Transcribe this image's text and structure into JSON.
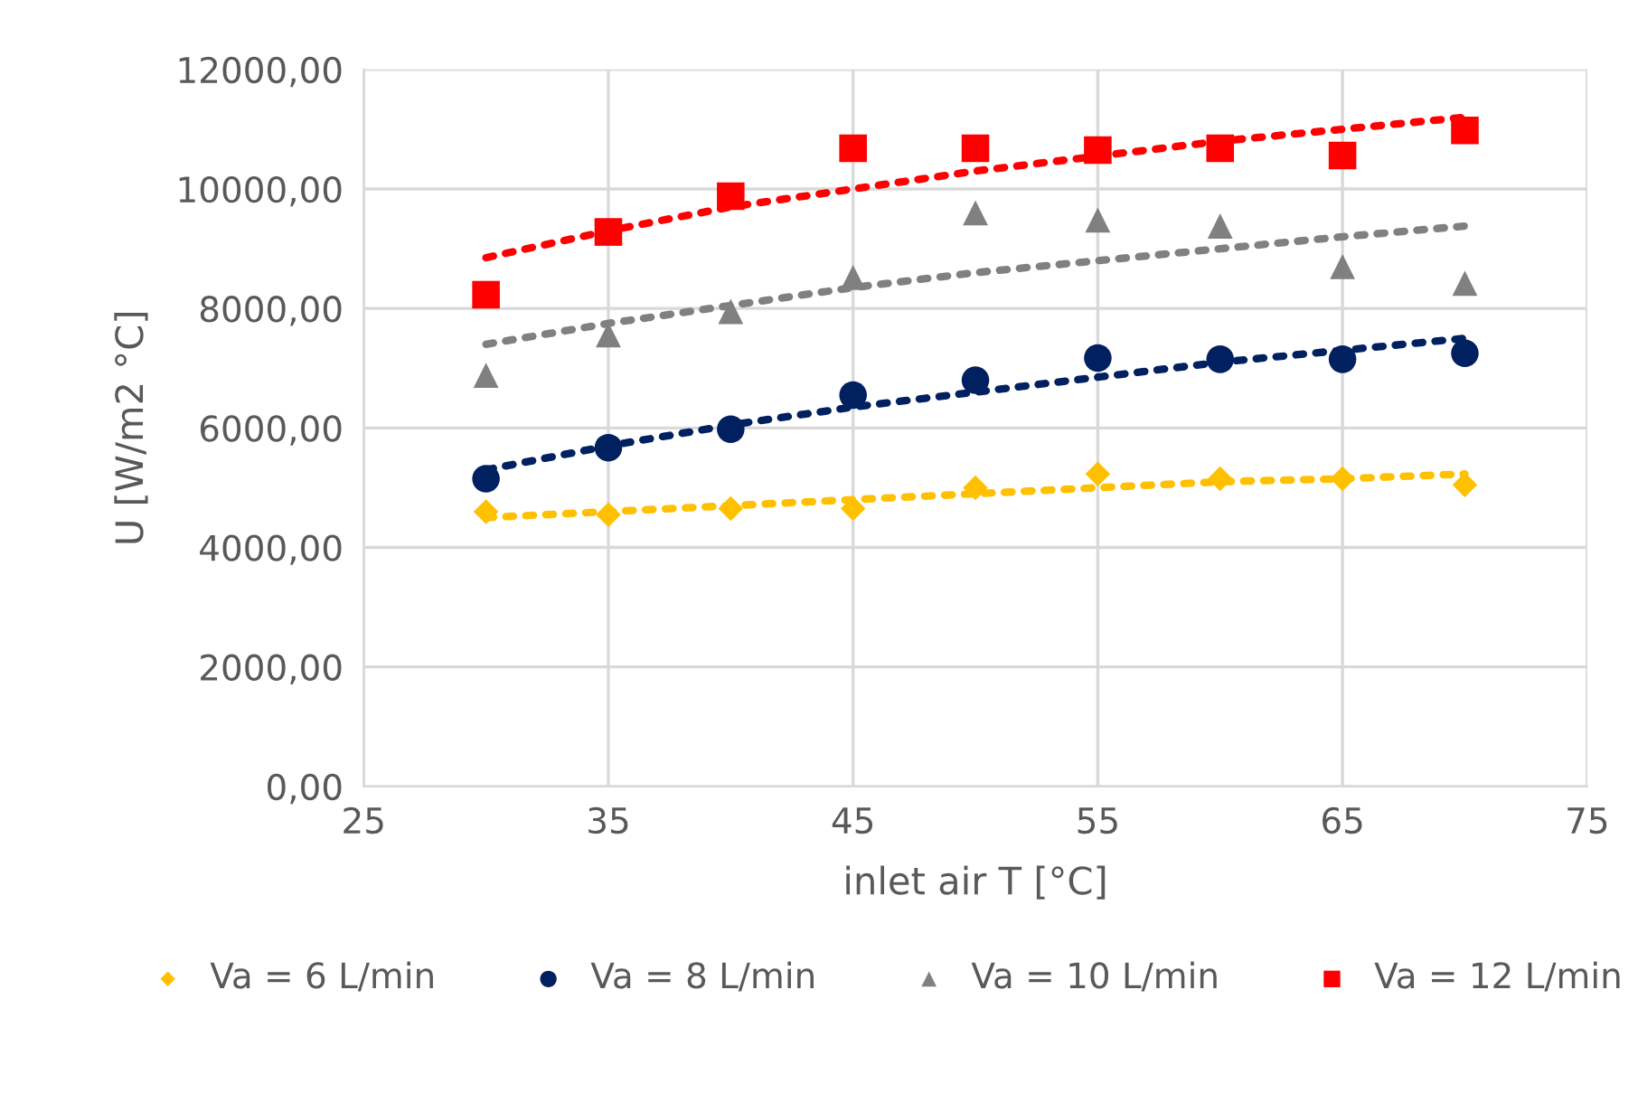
{
  "chart_data": {
    "type": "scatter",
    "xlabel": "inlet air T [°C]",
    "ylabel": "U [W/m2 °C]",
    "x": [
      30,
      35,
      40,
      45,
      50,
      55,
      60,
      65,
      70
    ],
    "xlim": [
      25,
      75
    ],
    "xticks": [
      25,
      35,
      45,
      55,
      65,
      75
    ],
    "ylim": [
      0,
      12000
    ],
    "yticks": [
      {
        "value": 0,
        "label": "0,00"
      },
      {
        "value": 2000,
        "label": "2000,00"
      },
      {
        "value": 4000,
        "label": "4000,00"
      },
      {
        "value": 6000,
        "label": "6000,00"
      },
      {
        "value": 8000,
        "label": "8000,00"
      },
      {
        "value": 10000,
        "label": "10000,00"
      },
      {
        "value": 12000,
        "label": "12000,00"
      }
    ],
    "grid": true,
    "legend": "bottom",
    "series": [
      {
        "name": "Va = 6 L/min",
        "color": "#ffc000",
        "marker": "diamond",
        "values": [
          4600,
          4550,
          4650,
          4650,
          5000,
          5230,
          5150,
          5150,
          5050
        ]
      },
      {
        "name": "Va = 8 L/min",
        "color": "#002060",
        "marker": "circle",
        "values": [
          5150,
          5670,
          5980,
          6550,
          6800,
          7170,
          7150,
          7150,
          7250
        ]
      },
      {
        "name": "Va = 10 L/min",
        "color": "#808080",
        "marker": "triangle",
        "values": [
          6880,
          7560,
          7950,
          8520,
          9600,
          9480,
          9380,
          8700,
          8420
        ]
      },
      {
        "name": "Va = 12 L/min",
        "color": "#ff0000",
        "marker": "square",
        "values": [
          8230,
          9280,
          9880,
          10680,
          10680,
          10650,
          10680,
          10560,
          10980
        ]
      },
      {
        "type": "line",
        "color": "#ffc000",
        "line_style": "dotted",
        "values": [
          4500,
          4600,
          4700,
          4800,
          4900,
          5000,
          5100,
          5150,
          5230
        ]
      },
      {
        "type": "line",
        "color": "#002060",
        "line_style": "dotted",
        "values": [
          5300,
          5700,
          6050,
          6350,
          6600,
          6850,
          7100,
          7300,
          7500
        ]
      },
      {
        "type": "line",
        "color": "#808080",
        "line_style": "dotted",
        "values": [
          7400,
          7750,
          8050,
          8350,
          8600,
          8800,
          9000,
          9200,
          9380
        ]
      },
      {
        "type": "line",
        "color": "#ff0000",
        "line_style": "dotted",
        "values": [
          8850,
          9300,
          9700,
          10000,
          10300,
          10550,
          10800,
          11000,
          11200
        ]
      }
    ]
  }
}
